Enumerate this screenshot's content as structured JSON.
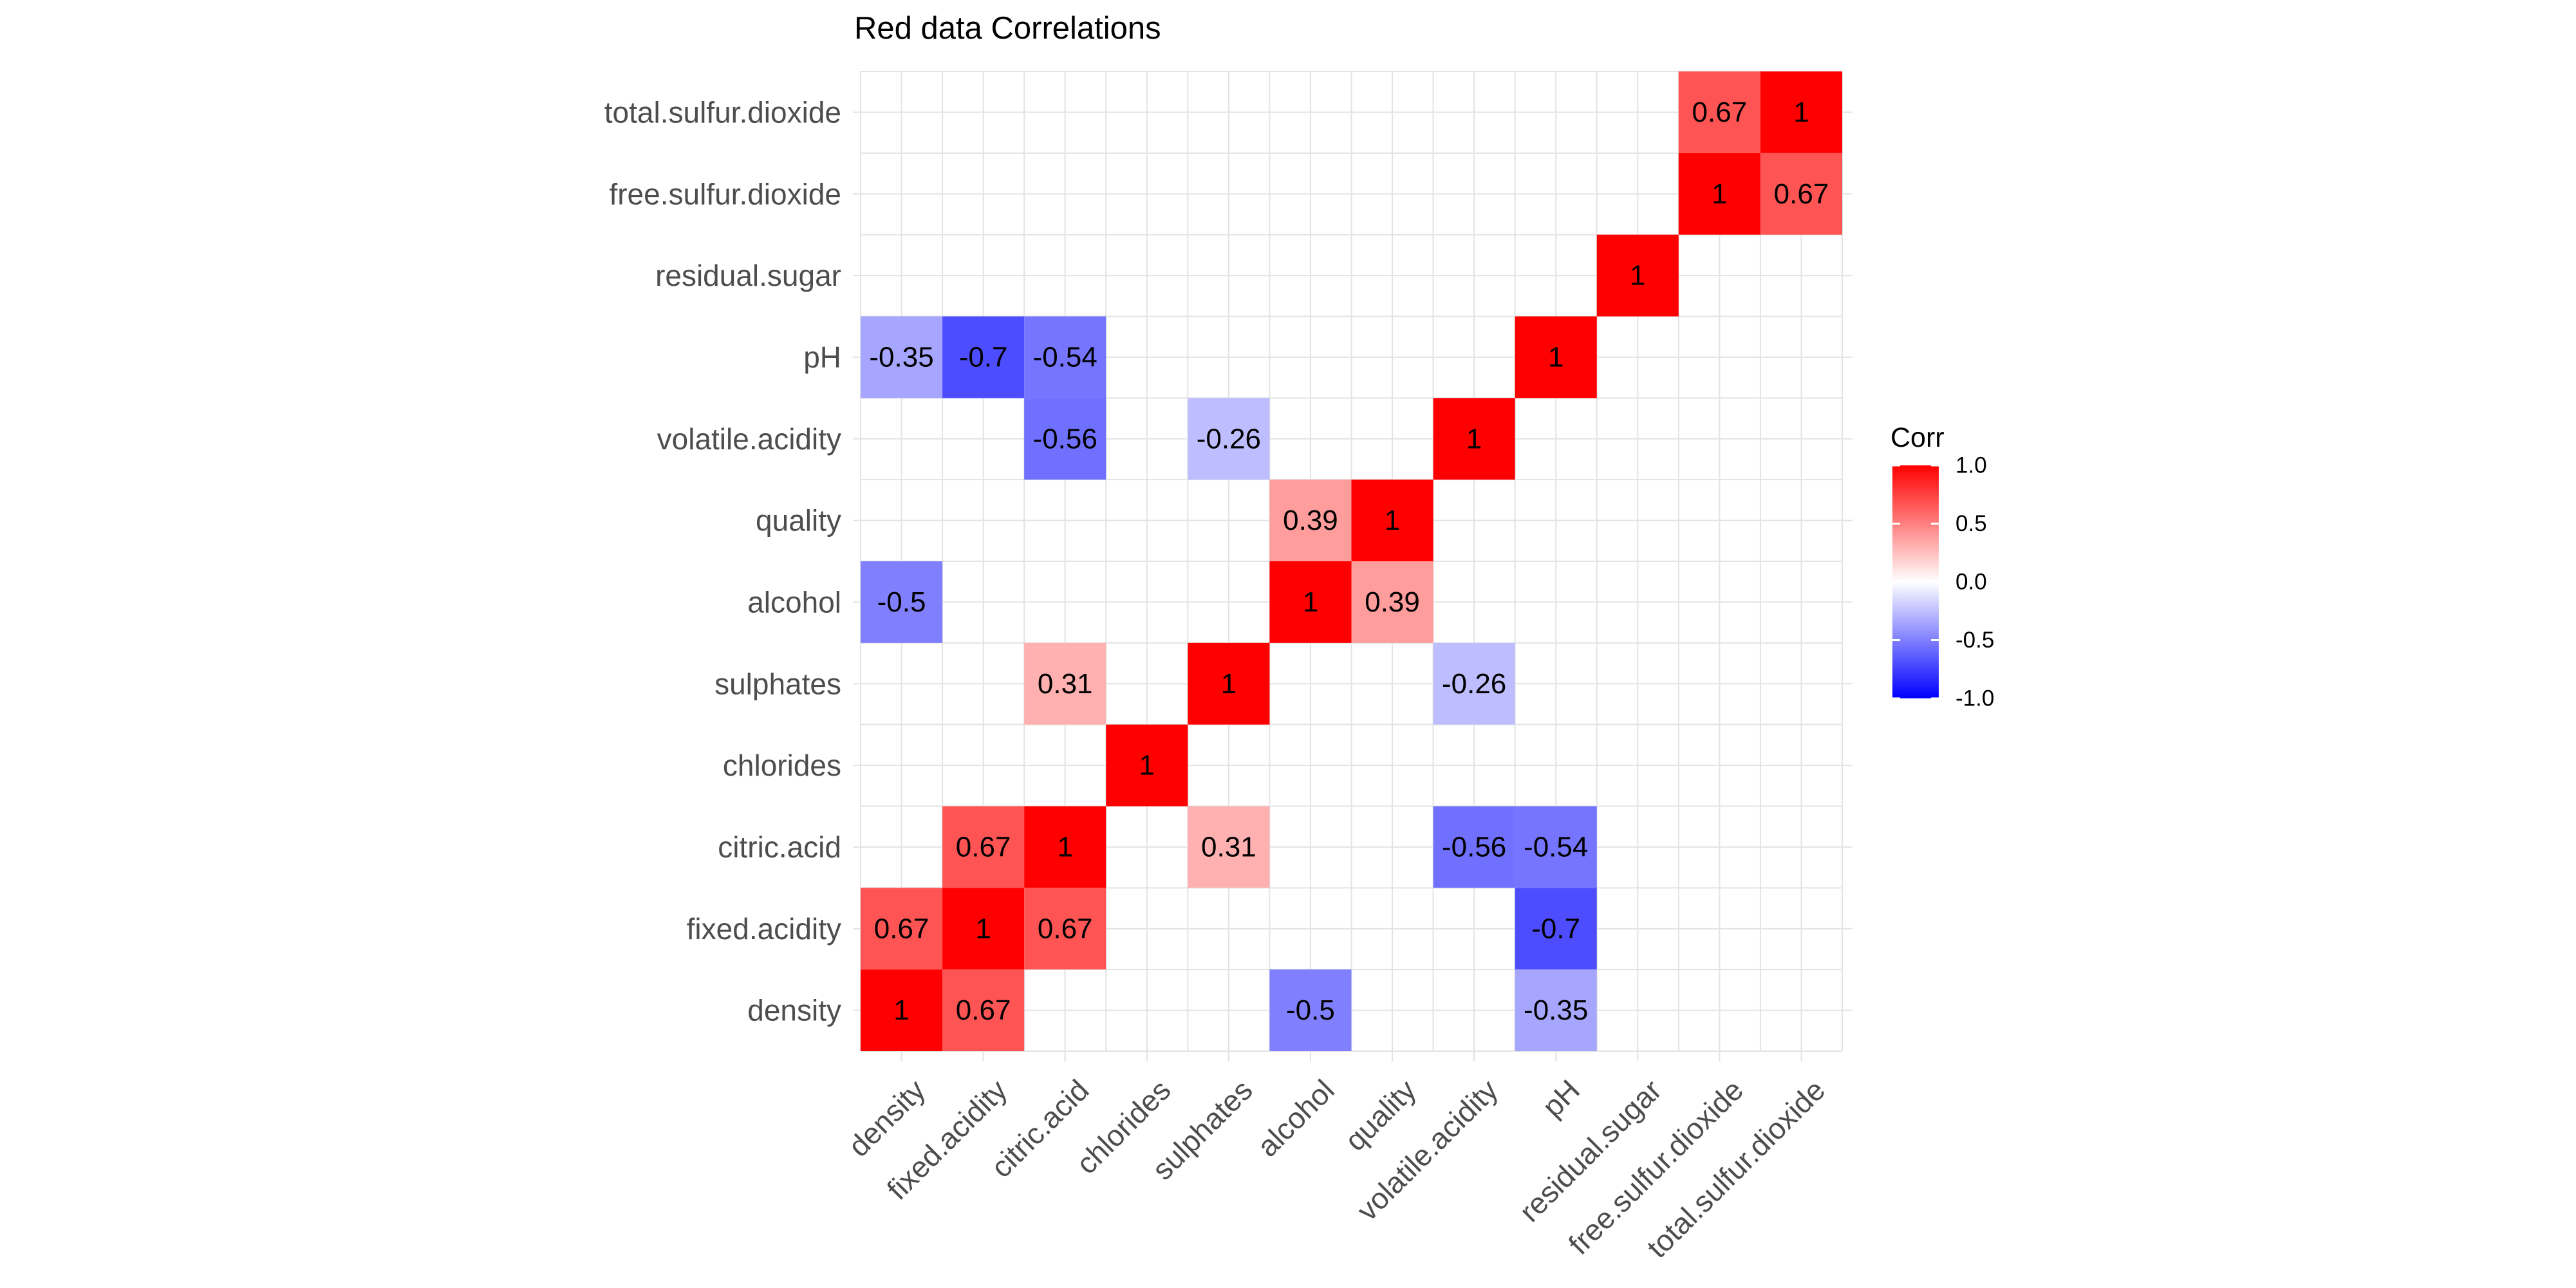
{
  "chart_data": {
    "type": "heatmap",
    "title": "Red data Correlations",
    "xlabel": "",
    "ylabel": "",
    "variables": [
      "density",
      "fixed.acidity",
      "citric.acid",
      "chlorides",
      "sulphates",
      "alcohol",
      "quality",
      "volatile.acidity",
      "pH",
      "residual.sugar",
      "free.sulfur.dioxide",
      "total.sulfur.dioxide"
    ],
    "cells": [
      {
        "x": "density",
        "y": "density",
        "value": 1,
        "label": "1"
      },
      {
        "x": "fixed.acidity",
        "y": "density",
        "value": 0.67,
        "label": "0.67"
      },
      {
        "x": "alcohol",
        "y": "density",
        "value": -0.5,
        "label": "-0.5"
      },
      {
        "x": "pH",
        "y": "density",
        "value": -0.35,
        "label": "-0.35"
      },
      {
        "x": "density",
        "y": "fixed.acidity",
        "value": 0.67,
        "label": "0.67"
      },
      {
        "x": "fixed.acidity",
        "y": "fixed.acidity",
        "value": 1,
        "label": "1"
      },
      {
        "x": "citric.acid",
        "y": "fixed.acidity",
        "value": 0.67,
        "label": "0.67"
      },
      {
        "x": "pH",
        "y": "fixed.acidity",
        "value": -0.7,
        "label": "-0.7"
      },
      {
        "x": "fixed.acidity",
        "y": "citric.acid",
        "value": 0.67,
        "label": "0.67"
      },
      {
        "x": "citric.acid",
        "y": "citric.acid",
        "value": 1,
        "label": "1"
      },
      {
        "x": "sulphates",
        "y": "citric.acid",
        "value": 0.31,
        "label": "0.31"
      },
      {
        "x": "volatile.acidity",
        "y": "citric.acid",
        "value": -0.56,
        "label": "-0.56"
      },
      {
        "x": "pH",
        "y": "citric.acid",
        "value": -0.54,
        "label": "-0.54"
      },
      {
        "x": "chlorides",
        "y": "chlorides",
        "value": 1,
        "label": "1"
      },
      {
        "x": "citric.acid",
        "y": "sulphates",
        "value": 0.31,
        "label": "0.31"
      },
      {
        "x": "sulphates",
        "y": "sulphates",
        "value": 1,
        "label": "1"
      },
      {
        "x": "volatile.acidity",
        "y": "sulphates",
        "value": -0.26,
        "label": "-0.26"
      },
      {
        "x": "density",
        "y": "alcohol",
        "value": -0.5,
        "label": "-0.5"
      },
      {
        "x": "alcohol",
        "y": "alcohol",
        "value": 1,
        "label": "1"
      },
      {
        "x": "quality",
        "y": "alcohol",
        "value": 0.39,
        "label": "0.39"
      },
      {
        "x": "alcohol",
        "y": "quality",
        "value": 0.39,
        "label": "0.39"
      },
      {
        "x": "quality",
        "y": "quality",
        "value": 1,
        "label": "1"
      },
      {
        "x": "citric.acid",
        "y": "volatile.acidity",
        "value": -0.56,
        "label": "-0.56"
      },
      {
        "x": "sulphates",
        "y": "volatile.acidity",
        "value": -0.26,
        "label": "-0.26"
      },
      {
        "x": "volatile.acidity",
        "y": "volatile.acidity",
        "value": 1,
        "label": "1"
      },
      {
        "x": "density",
        "y": "pH",
        "value": -0.35,
        "label": "-0.35"
      },
      {
        "x": "fixed.acidity",
        "y": "pH",
        "value": -0.7,
        "label": "-0.7"
      },
      {
        "x": "citric.acid",
        "y": "pH",
        "value": -0.54,
        "label": "-0.54"
      },
      {
        "x": "pH",
        "y": "pH",
        "value": 1,
        "label": "1"
      },
      {
        "x": "residual.sugar",
        "y": "residual.sugar",
        "value": 1,
        "label": "1"
      },
      {
        "x": "free.sulfur.dioxide",
        "y": "free.sulfur.dioxide",
        "value": 1,
        "label": "1"
      },
      {
        "x": "total.sulfur.dioxide",
        "y": "free.sulfur.dioxide",
        "value": 0.67,
        "label": "0.67"
      },
      {
        "x": "free.sulfur.dioxide",
        "y": "total.sulfur.dioxide",
        "value": 0.67,
        "label": "0.67"
      },
      {
        "x": "total.sulfur.dioxide",
        "y": "total.sulfur.dioxide",
        "value": 1,
        "label": "1"
      }
    ],
    "color_scale": {
      "low": "#0000ff",
      "mid": "#ffffff",
      "high": "#ff0000",
      "range": [
        -1,
        1
      ]
    },
    "legend": {
      "title": "Corr",
      "placement": "right",
      "ticks": [
        {
          "value": 1.0,
          "label": "1.0"
        },
        {
          "value": 0.5,
          "label": "0.5"
        },
        {
          "value": 0.0,
          "label": "0.0"
        },
        {
          "value": -0.5,
          "label": "-0.5"
        },
        {
          "value": -1.0,
          "label": "-1.0"
        }
      ]
    },
    "grid": true
  }
}
